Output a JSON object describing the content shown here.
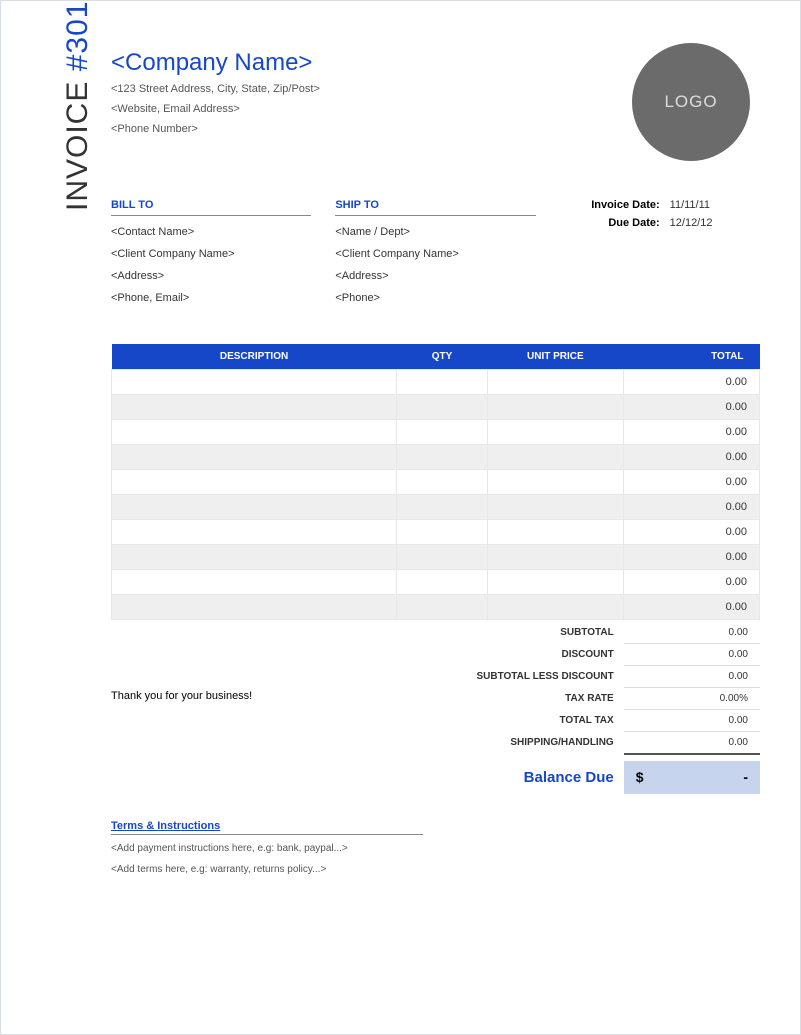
{
  "invoice": {
    "word": "INVOICE",
    "hash": "#",
    "number": "301"
  },
  "company": {
    "name": "<Company Name>",
    "address": "<123 Street Address, City, State, Zip/Post>",
    "web": "<Website, Email Address>",
    "phone": "<Phone Number>"
  },
  "logo": {
    "text": "LOGO",
    "bg": "#6b6b6b",
    "fg": "#dddddd"
  },
  "bill_to": {
    "heading": "BILL TO",
    "lines": [
      "<Contact Name>",
      "<Client Company Name>",
      "<Address>",
      "<Phone, Email>"
    ]
  },
  "ship_to": {
    "heading": "SHIP TO",
    "lines": [
      "<Name / Dept>",
      "<Client Company Name>",
      "<Address>",
      "<Phone>"
    ]
  },
  "meta": {
    "invoice_date_label": "Invoice Date:",
    "invoice_date": "11/11/11",
    "due_date_label": "Due Date:",
    "due_date": "12/12/12"
  },
  "table": {
    "headers": {
      "description": "DESCRIPTION",
      "qty": "QTY",
      "unit_price": "UNIT PRICE",
      "total": "TOTAL"
    },
    "header_bg": "#1647c9",
    "header_fg": "#ffffff",
    "row_alt_bg": "#efefef",
    "border_color": "#e8e8e8",
    "rows": [
      {
        "description": "",
        "qty": "",
        "unit_price": "",
        "total": "0.00"
      },
      {
        "description": "",
        "qty": "",
        "unit_price": "",
        "total": "0.00"
      },
      {
        "description": "",
        "qty": "",
        "unit_price": "",
        "total": "0.00"
      },
      {
        "description": "",
        "qty": "",
        "unit_price": "",
        "total": "0.00"
      },
      {
        "description": "",
        "qty": "",
        "unit_price": "",
        "total": "0.00"
      },
      {
        "description": "",
        "qty": "",
        "unit_price": "",
        "total": "0.00"
      },
      {
        "description": "",
        "qty": "",
        "unit_price": "",
        "total": "0.00"
      },
      {
        "description": "",
        "qty": "",
        "unit_price": "",
        "total": "0.00"
      },
      {
        "description": "",
        "qty": "",
        "unit_price": "",
        "total": "0.00"
      },
      {
        "description": "",
        "qty": "",
        "unit_price": "",
        "total": "0.00"
      }
    ]
  },
  "summary": {
    "subtotal_label": "SUBTOTAL",
    "subtotal": "0.00",
    "discount_label": "DISCOUNT",
    "discount": "0.00",
    "less_label": "SUBTOTAL LESS DISCOUNT",
    "less": "0.00",
    "tax_rate_label": "TAX RATE",
    "tax_rate": "0.00%",
    "total_tax_label": "TOTAL TAX",
    "total_tax": "0.00",
    "shipping_label": "SHIPPING/HANDLING",
    "shipping": "0.00",
    "thanks": "Thank you for your business!"
  },
  "balance": {
    "label": "Balance Due",
    "currency": "$",
    "value": "-",
    "bg": "#c7d4ee"
  },
  "terms": {
    "heading": "Terms & Instructions",
    "lines": [
      "<Add payment instructions here, e.g: bank, paypal...>",
      "<Add terms here, e.g: warranty, returns policy...>"
    ]
  },
  "colors": {
    "accent": "#1647c9",
    "text": "#333333",
    "muted": "#555555"
  }
}
